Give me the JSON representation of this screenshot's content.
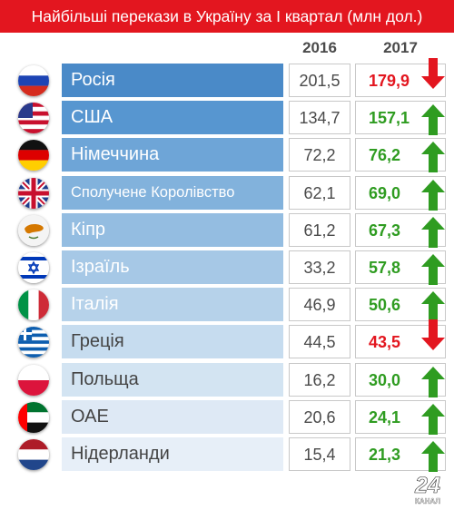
{
  "title": "Найбільші перекази в Україну за I квартал (млн дол.)",
  "colors": {
    "title_bg": "#e3161f",
    "up": "#2f9c21",
    "down": "#e3161f"
  },
  "logo": {
    "number": "24",
    "word": "КАНАЛ"
  },
  "chart_data": {
    "type": "table",
    "title": "Найбільші перекази в Україну за I квартал (млн дол.)",
    "columns": [
      "2016",
      "2017"
    ],
    "rows": [
      {
        "country": "Росія",
        "flag": "russia-flag",
        "v2016": "201,5",
        "v2017": "179,9",
        "trend": "down"
      },
      {
        "country": "США",
        "flag": "usa-flag",
        "v2016": "134,7",
        "v2017": "157,1",
        "trend": "up"
      },
      {
        "country": "Німеччина",
        "flag": "germany-flag",
        "v2016": "72,2",
        "v2017": "76,2",
        "trend": "up"
      },
      {
        "country": "Сполучене Королівство",
        "flag": "uk-flag",
        "v2016": "62,1",
        "v2017": "69,0",
        "trend": "up"
      },
      {
        "country": "Кіпр",
        "flag": "cyprus-flag",
        "v2016": "61,2",
        "v2017": "67,3",
        "trend": "up"
      },
      {
        "country": "Ізраїль",
        "flag": "israel-flag",
        "v2016": "33,2",
        "v2017": "57,8",
        "trend": "up"
      },
      {
        "country": "Італія",
        "flag": "italy-flag",
        "v2016": "46,9",
        "v2017": "50,6",
        "trend": "up"
      },
      {
        "country": "Греція",
        "flag": "greece-flag",
        "v2016": "44,5",
        "v2017": "43,5",
        "trend": "down"
      },
      {
        "country": "Польща",
        "flag": "poland-flag",
        "v2016": "16,2",
        "v2017": "30,0",
        "trend": "up"
      },
      {
        "country": "ОАЕ",
        "flag": "uae-flag",
        "v2016": "20,6",
        "v2017": "24,1",
        "trend": "up"
      },
      {
        "country": "Нідерланди",
        "flag": "netherlands-flag",
        "v2016": "15,4",
        "v2017": "21,3",
        "trend": "up"
      }
    ]
  }
}
